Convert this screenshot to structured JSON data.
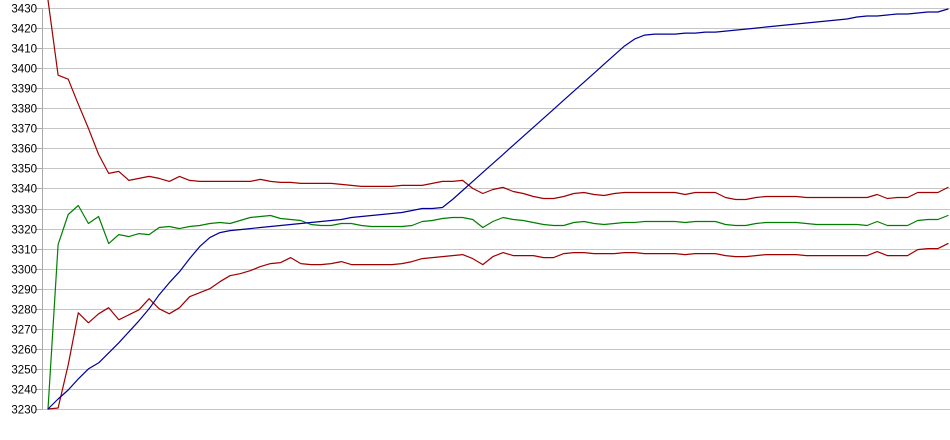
{
  "chart_data": {
    "type": "line",
    "title": "",
    "xlabel": "",
    "ylabel": "",
    "legend": "none",
    "grid": "horizontal",
    "background_color": "#ffffff",
    "gridline_color": "#c6c6c6",
    "axis_color": "#aaaaaa",
    "label_color": "#000000",
    "y_axis": {
      "min": 3230,
      "max": 3430,
      "tick_step": 10,
      "tick_labels": [
        "3430",
        "3420",
        "3410",
        "3400",
        "3390",
        "3380",
        "3370",
        "3360",
        "3350",
        "3340",
        "3330",
        "3320",
        "3310",
        "3300",
        "3290",
        "3280",
        "3270",
        "3260",
        "3250",
        "3240",
        "3230"
      ]
    },
    "x_axis": {
      "tick_labels_visible": false,
      "points": 90
    },
    "series": [
      {
        "name": "dark-red-upper-band",
        "color": "#a00000",
        "values": [
          3434,
          3396.5,
          3394.5,
          3382,
          3370,
          3357,
          3347.5,
          3348.5,
          3344,
          3345,
          3346,
          3345,
          3343.5,
          3346,
          3344,
          3343.5,
          3343.5,
          3343.5,
          3343.5,
          3343.5,
          3343.5,
          3344.5,
          3343.5,
          3343,
          3343,
          3342.5,
          3342.5,
          3342.5,
          3342.5,
          3342,
          3341.5,
          3341,
          3341,
          3341,
          3341,
          3341.5,
          3341.5,
          3341.5,
          3342.5,
          3343.5,
          3343.5,
          3344,
          3340,
          3337.5,
          3339.5,
          3340.5,
          3338.5,
          3337.5,
          3336,
          3335,
          3335,
          3336,
          3337.5,
          3338,
          3337,
          3336.5,
          3337.5,
          3338,
          3338,
          3338,
          3338,
          3338,
          3338,
          3337,
          3338,
          3338,
          3338,
          3335.5,
          3334.5,
          3334.5,
          3335.5,
          3336,
          3336,
          3336,
          3336,
          3335.5,
          3335.5,
          3335.5,
          3335.5,
          3335.5,
          3335.5,
          3335.5,
          3337,
          3335,
          3335.5,
          3335.5,
          3338,
          3338,
          3338,
          3340.5
        ]
      },
      {
        "name": "green-mid-line",
        "color": "#007f00",
        "values": [
          3230,
          3312,
          3327,
          3331.5,
          3322.5,
          3326,
          3312.5,
          3317,
          3316,
          3317.5,
          3317,
          3320.5,
          3321,
          3320,
          3321,
          3321.5,
          3322.5,
          3323,
          3322.5,
          3324,
          3325.5,
          3326,
          3326.5,
          3325,
          3324.5,
          3324,
          3322,
          3321.5,
          3321.5,
          3322.5,
          3322.5,
          3321.5,
          3321,
          3321,
          3321,
          3321,
          3321.5,
          3323.5,
          3324,
          3325,
          3325.5,
          3325.5,
          3324.5,
          3320.5,
          3323.5,
          3325.5,
          3324.5,
          3324,
          3323,
          3322,
          3321.5,
          3321.5,
          3323,
          3323.5,
          3322.5,
          3322,
          3322.5,
          3323,
          3323,
          3323.5,
          3323.5,
          3323.5,
          3323.5,
          3323,
          3323.5,
          3323.5,
          3323.5,
          3322,
          3321.5,
          3321.5,
          3322.5,
          3323,
          3323,
          3323,
          3323,
          3322.5,
          3322,
          3322,
          3322,
          3322,
          3322,
          3321.5,
          3323.5,
          3321.5,
          3321.5,
          3321.5,
          3324,
          3324.5,
          3324.5,
          3326.5
        ]
      },
      {
        "name": "dark-red-lower-band",
        "color": "#a00000",
        "values": [
          3230,
          3230.5,
          3252,
          3278,
          3273,
          3277.5,
          3280.5,
          3274.5,
          3277,
          3279.5,
          3285,
          3280,
          3277.5,
          3280.5,
          3286,
          3288,
          3290,
          3293.5,
          3296.5,
          3297.5,
          3299,
          3301,
          3302.5,
          3303,
          3305.5,
          3302.5,
          3302,
          3302,
          3302.5,
          3303.5,
          3302,
          3302,
          3302,
          3302,
          3302,
          3302.5,
          3303.5,
          3305,
          3305.5,
          3306,
          3306.5,
          3307,
          3305,
          3302,
          3306,
          3308,
          3306.5,
          3306.5,
          3306.5,
          3305.5,
          3305.5,
          3307.5,
          3308,
          3308,
          3307.5,
          3307.5,
          3307.5,
          3308,
          3308,
          3307.5,
          3307.5,
          3307.5,
          3307.5,
          3307,
          3307.5,
          3307.5,
          3307.5,
          3306.5,
          3306,
          3306,
          3306.5,
          3307,
          3307,
          3307,
          3307,
          3306.5,
          3306.5,
          3306.5,
          3306.5,
          3306.5,
          3306.5,
          3306.5,
          3308.5,
          3306.5,
          3306.5,
          3306.5,
          3309.5,
          3310,
          3310,
          3312.5
        ]
      },
      {
        "name": "navy-rising-line",
        "color": "#000099",
        "values": [
          3230,
          3235,
          3239.5,
          3245,
          3250,
          3253,
          3258,
          3263,
          3268.5,
          3274,
          3280,
          3287,
          3293,
          3298.5,
          3305,
          3311,
          3315.5,
          3318,
          3319,
          3319.5,
          3320,
          3320.5,
          3321,
          3321.5,
          3322,
          3322.5,
          3323,
          3323.5,
          3324,
          3324.5,
          3325.5,
          3326,
          3326.5,
          3327,
          3327.5,
          3328,
          3329,
          3330,
          3330,
          3330.5,
          3334.5,
          3339,
          3343.5,
          3348,
          3352.5,
          3357,
          3361.5,
          3366,
          3370.5,
          3375,
          3379.5,
          3384,
          3388.5,
          3393,
          3397.5,
          3402,
          3406.5,
          3411,
          3414.5,
          3416.5,
          3417,
          3417,
          3417,
          3417.5,
          3417.5,
          3418,
          3418,
          3418.5,
          3419,
          3419.5,
          3420,
          3420.5,
          3421,
          3421.5,
          3422,
          3422.5,
          3423,
          3423.5,
          3424,
          3424.5,
          3425.5,
          3426,
          3426,
          3426.5,
          3427,
          3427,
          3427.5,
          3428,
          3428,
          3429.5
        ]
      }
    ]
  }
}
